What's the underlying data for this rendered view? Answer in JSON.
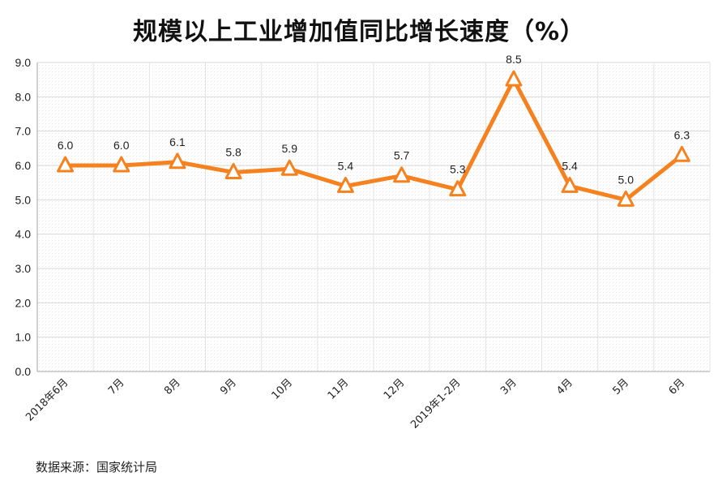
{
  "title": "规模以上工业增加值同比增长速度（%）",
  "source_label": "数据来源：国家统计局",
  "chart_data": {
    "type": "line",
    "title": "规模以上工业增加值同比增长速度（%）",
    "xlabel": "",
    "ylabel": "",
    "categories": [
      "2018年6月",
      "7月",
      "8月",
      "9月",
      "10月",
      "11月",
      "12月",
      "2019年1-2月",
      "3月",
      "4月",
      "5月",
      "6月"
    ],
    "series": [
      {
        "values": [
          6.0,
          6.0,
          6.1,
          5.8,
          5.9,
          5.4,
          5.7,
          5.3,
          8.5,
          5.4,
          5.0,
          6.3
        ],
        "labels": [
          "6.0",
          "6.0",
          "6.1",
          "5.8",
          "5.9",
          "5.4",
          "5.7",
          "5.3",
          "8.5",
          "5.4",
          "5.0",
          "6.3"
        ],
        "color": "#F5821F",
        "marker": "triangle"
      }
    ],
    "ylim": [
      0,
      9
    ],
    "yticks": [
      "0.0",
      "1.0",
      "2.0",
      "3.0",
      "4.0",
      "5.0",
      "6.0",
      "7.0",
      "8.0",
      "9.0"
    ],
    "grid": true,
    "legend": "none"
  }
}
